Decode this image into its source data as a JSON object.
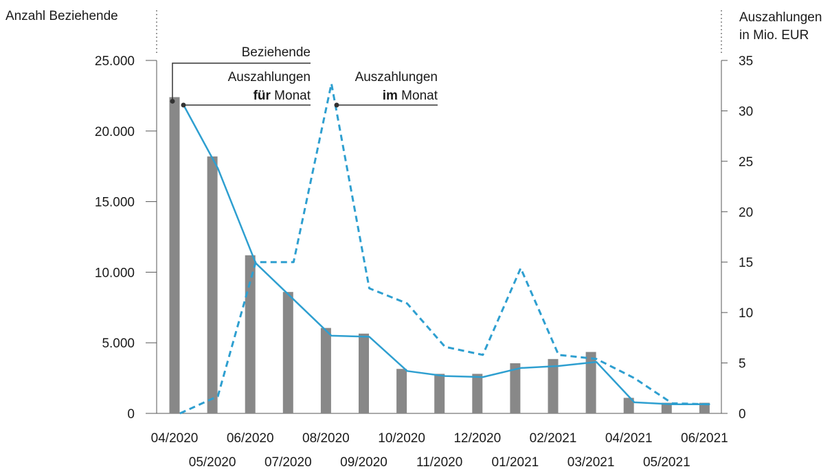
{
  "chart_data": {
    "type": "bar",
    "categories": [
      "04/2020",
      "05/2020",
      "06/2020",
      "07/2020",
      "08/2020",
      "09/2020",
      "10/2020",
      "11/2020",
      "12/2020",
      "01/2021",
      "02/2021",
      "03/2021",
      "04/2021",
      "05/2021",
      "06/2021"
    ],
    "left_axis": {
      "label": "Anzahl Beziehende",
      "ylim": [
        0,
        25000
      ],
      "ticks": [
        0,
        5000,
        10000,
        15000,
        20000,
        25000
      ],
      "tick_labels": [
        "0",
        "5.000",
        "10.000",
        "15.000",
        "20.000",
        "25.000"
      ]
    },
    "right_axis": {
      "label_lines": [
        "Auszahlungen",
        "in Mio. EUR"
      ],
      "ylim": [
        0,
        35
      ],
      "ticks": [
        0,
        5,
        10,
        15,
        20,
        25,
        30,
        35
      ],
      "tick_labels": [
        "0",
        "5",
        "10",
        "15",
        "20",
        "25",
        "30",
        "35"
      ]
    },
    "series": [
      {
        "name": "Beziehende",
        "type": "bar",
        "axis": "left",
        "color": "#888888",
        "values": [
          22400,
          18200,
          11200,
          8600,
          6050,
          5650,
          3150,
          2800,
          2800,
          3550,
          3850,
          4350,
          1100,
          750,
          750
        ]
      },
      {
        "name": "Auszahlungen für Monat",
        "type": "line",
        "axis": "right",
        "style": "solid",
        "color": "#2e9fd0",
        "values": [
          30.6,
          24.3,
          14.9,
          11.3,
          7.7,
          7.6,
          4.2,
          3.7,
          3.6,
          4.5,
          4.7,
          5.1,
          1.1,
          0.9,
          0.9
        ]
      },
      {
        "name": "Auszahlungen im Monat",
        "type": "line",
        "axis": "right",
        "style": "dashed",
        "color": "#2e9fd0",
        "values": [
          0,
          1.7,
          15.0,
          15.0,
          32.7,
          12.4,
          10.9,
          6.6,
          5.8,
          14.4,
          5.8,
          5.4,
          3.5,
          1.0,
          0.9
        ]
      }
    ],
    "legend": {
      "beziehende": "Beziehende",
      "fuer_line1": "Auszahlungen",
      "fuer_bold": "für",
      "fuer_rest": " Monat",
      "im_line1": "Auszahlungen",
      "im_bold": "im",
      "im_rest": " Monat"
    },
    "grid": false
  }
}
